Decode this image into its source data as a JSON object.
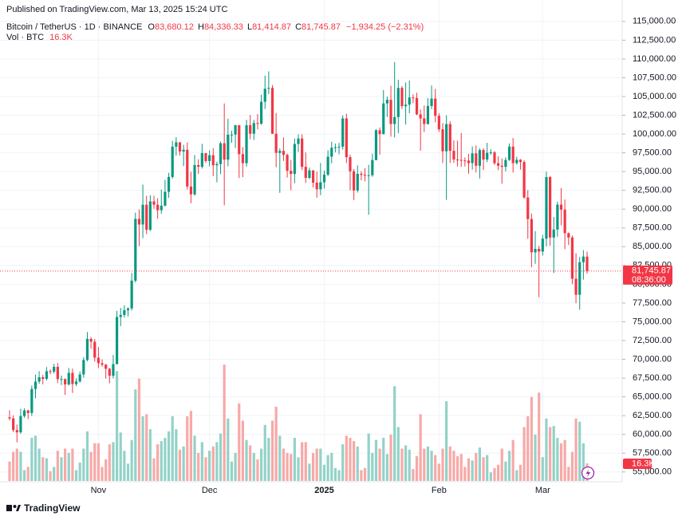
{
  "published": "Published on TradingView.com, Mar 13, 2025 15:24 UTC",
  "footer": {
    "brand": "TradingView"
  },
  "chart_data": {
    "type": "candlestick",
    "title": "Bitcoin / TetherUS · 1D · BINANCE",
    "ohlc_legend": [
      {
        "key": "O",
        "value": "83,680.12"
      },
      {
        "key": "H",
        "value": "84,336.33"
      },
      {
        "key": "L",
        "value": "81,414.87"
      },
      {
        "key": "C",
        "value": "81,745.87"
      }
    ],
    "change": "−1,934.25 (−2.31%)",
    "volume_legend": "Vol · BTC",
    "volume_last_label": "16.3K",
    "last_price_label": "81,745.87",
    "countdown": "08:36:00",
    "up_color": "#089981",
    "down_color": "#f23645",
    "volume_up_color": "#93d2c8",
    "volume_down_color": "#f7a9a7",
    "grid": true,
    "ylim": [
      53700,
      117000
    ],
    "yticks": [
      {
        "value": 55000,
        "label": "55,000.00"
      },
      {
        "value": 57500,
        "label": "57,500.00"
      },
      {
        "value": 60000,
        "label": "60,000.00"
      },
      {
        "value": 62500,
        "label": "62,500.00"
      },
      {
        "value": 65000,
        "label": "65,000.00"
      },
      {
        "value": 67500,
        "label": "67,500.00"
      },
      {
        "value": 70000,
        "label": "70,000.00"
      },
      {
        "value": 72500,
        "label": "72,500.00"
      },
      {
        "value": 75000,
        "label": "75,000.00"
      },
      {
        "value": 77500,
        "label": "77,500.00"
      },
      {
        "value": 80000,
        "label": "80,000.00"
      },
      {
        "value": 82500,
        "label": "82,500.00"
      },
      {
        "value": 85000,
        "label": "85,000.00"
      },
      {
        "value": 87500,
        "label": "87,500.00"
      },
      {
        "value": 90000,
        "label": "90,000.00"
      },
      {
        "value": 92500,
        "label": "92,500.00"
      },
      {
        "value": 95000,
        "label": "95,000.00"
      },
      {
        "value": 97500,
        "label": "97,500.00"
      },
      {
        "value": 100000,
        "label": "100,000.00"
      },
      {
        "value": 102500,
        "label": "102,500.00"
      },
      {
        "value": 105000,
        "label": "105,000.00"
      },
      {
        "value": 107500,
        "label": "107,500.00"
      },
      {
        "value": 110000,
        "label": "110,000.00"
      },
      {
        "value": 112500,
        "label": "112,500.00"
      },
      {
        "value": 115000,
        "label": "115,000.00"
      }
    ],
    "categories": [
      null,
      null,
      null,
      null,
      null,
      null,
      null,
      null,
      null,
      null,
      null,
      null,
      null,
      null,
      null,
      null,
      null,
      null,
      null,
      null,
      null,
      null,
      null,
      null,
      "Nov",
      null,
      null,
      null,
      null,
      null,
      null,
      null,
      null,
      null,
      null,
      null,
      null,
      null,
      null,
      null,
      null,
      null,
      null,
      null,
      null,
      null,
      null,
      null,
      null,
      null,
      null,
      null,
      null,
      null,
      "Dec",
      null,
      null,
      null,
      null,
      null,
      null,
      null,
      null,
      null,
      null,
      null,
      null,
      null,
      null,
      null,
      null,
      null,
      null,
      null,
      null,
      null,
      null,
      null,
      null,
      null,
      null,
      null,
      null,
      null,
      null,
      "2025",
      null,
      null,
      null,
      null,
      null,
      null,
      null,
      null,
      null,
      null,
      null,
      null,
      null,
      null,
      null,
      null,
      null,
      null,
      null,
      null,
      null,
      null,
      null,
      null,
      null,
      null,
      null,
      null,
      null,
      null,
      "Feb",
      null,
      null,
      null,
      null,
      null,
      null,
      null,
      null,
      null,
      null,
      null,
      null,
      null,
      null,
      null,
      null,
      null,
      null,
      null,
      null,
      null,
      null,
      null,
      null,
      null,
      null,
      null,
      "Mar",
      null,
      null,
      null,
      null,
      null,
      null,
      null,
      null,
      null,
      null,
      null,
      null
    ],
    "open": [
      62286,
      62131,
      60582,
      60274,
      62445,
      63193,
      62851,
      66046,
      67041,
      67612,
      67399,
      68418,
      68362,
      69001,
      67367,
      67368,
      66653,
      68198,
      66698,
      67047,
      67985,
      69910,
      72720,
      72339,
      70215,
      69482,
      69289,
      68741,
      67811,
      69359,
      75640,
      75904,
      76545,
      76778,
      80471,
      88705,
      87955,
      90585,
      87250,
      91032,
      90587,
      89855,
      90465,
      92310,
      94287,
      98317,
      98893,
      97672,
      97901,
      93010,
      91966,
      95864,
      95644,
      97461,
      96407,
      97185,
      95840,
      96002,
      98768,
      96593,
      99921,
      99924,
      101171,
      97323,
      96126,
      101171,
      100043,
      101459,
      101373,
      104298,
      106030,
      106140,
      100041,
      97490,
      97756,
      97225,
      95105,
      94687,
      98676,
      99400,
      95633,
      94164,
      95164,
      93530,
      92644,
      93576,
      94592,
      96984,
      98175,
      98237,
      98314,
      102078,
      96923,
      95043,
      92484,
      94702,
      94567,
      94488,
      94517,
      96535,
      100505,
      99987,
      104078,
      104556,
      101331,
      102261,
      106144,
      103706,
      103910,
      104871,
      104797,
      102620,
      102082,
      101336,
      103734,
      104722,
      102430,
      100635,
      97700,
      101328,
      97763,
      96613,
      96555,
      96482,
      96466,
      96126,
      97430,
      95778,
      97870,
      96608,
      97500,
      97569,
      96118,
      95780,
      95629,
      96550,
      98333,
      96125,
      96577,
      96273,
      91552,
      88680,
      84250,
      84708,
      84349,
      86064,
      94270,
      86221,
      87281,
      90606,
      89931,
      86801,
      86222,
      80734,
      78596,
      82933,
      83680.12
    ],
    "high": [
      63200,
      62543,
      61320,
      63417,
      63480,
      63285,
      66500,
      67950,
      68424,
      67940,
      68969,
      68668,
      69400,
      69500,
      67836,
      67440,
      68850,
      68771,
      67454,
      68380,
      70270,
      73620,
      72961,
      72700,
      71632,
      70000,
      69380,
      68870,
      70577,
      76460,
      76849,
      77199,
      76900,
      81500,
      89530,
      89956,
      93265,
      91765,
      91850,
      91779,
      91449,
      92594,
      93905,
      94831,
      99073,
      99588,
      98948,
      98564,
      98871,
      94973,
      97208,
      96650,
      98693,
      97463,
      97836,
      98130,
      96305,
      99000,
      104088,
      102039,
      100439,
      101234,
      101198,
      98270,
      101895,
      102540,
      101895,
      102650,
      105250,
      107780,
      108353,
      106524,
      102800,
      98100,
      99540,
      97400,
      96538,
      99404,
      99960,
      99963,
      97544,
      95525,
      95174,
      95000,
      96150,
      95150,
      97839,
      98976,
      98734,
      98813,
      102482,
      102712,
      97258,
      95350,
      95836,
      95054,
      95450,
      95900,
      97371,
      100681,
      100873,
      105865,
      104988,
      106422,
      109588,
      107240,
      106394,
      106850,
      107120,
      105286,
      105500,
      103260,
      103800,
      104782,
      106457,
      106012,
      102783,
      101456,
      102500,
      101700,
      99149,
      99120,
      100137,
      96880,
      97352,
      98345,
      98478,
      98119,
      98083,
      98826,
      97972,
      97732,
      97046,
      96753,
      96899,
      98756,
      99475,
      96964,
      96671,
      96503,
      92541,
      89414,
      87078,
      85120,
      86558,
      95000,
      94416,
      88967,
      91000,
      92810,
      91283,
      86897,
      86500,
      84123,
      83617,
      84539,
      84336.33
    ],
    "low": [
      61860,
      60300,
      58946,
      60088,
      62210,
      62050,
      62457,
      64800,
      66750,
      66666,
      67177,
      68024,
      68100,
      66835,
      66571,
      65260,
      66500,
      65520,
      66439,
      66889,
      67567,
      69730,
      71436,
      69685,
      68820,
      69020,
      67435,
      66803,
      67458,
      69322,
      74416,
      75555,
      75714,
      76493,
      80216,
      85072,
      86127,
      86668,
      87073,
      90056,
      88722,
      89376,
      90357,
      91500,
      94056,
      97122,
      97136,
      95734,
      92600,
      90791,
      91792,
      94677,
      95407,
      96150,
      95693,
      94395,
      93578,
      94665,
      90500,
      95705,
      98844,
      98150,
      94150,
      94256,
      95658,
      99311,
      99205,
      100626,
      101227,
      103322,
      105321,
      100000,
      95587,
      92175,
      96398,
      94202,
      92520,
      93448,
      97600,
      95200,
      93500,
      94014,
      92881,
      91530,
      91866,
      92743,
      94392,
      96100,
      97562,
      97291,
      97926,
      96132,
      92500,
      91203,
      92206,
      93831,
      93712,
      89256,
      94306,
      96500,
      97256,
      99950,
      102277,
      99651,
      99550,
      100119,
      103339,
      101262,
      102750,
      104106,
      102520,
      97777,
      100272,
      101256,
      103321,
      101560,
      100279,
      96150,
      91231,
      96150,
      96155,
      95676,
      95620,
      95688,
      94713,
      95256,
      94876,
      94088,
      95217,
      96252,
      97223,
      95900,
      95205,
      93388,
      95026,
      96416,
      94871,
      95945,
      95270,
      91371,
      86050,
      82256,
      82716,
      78258,
      83824,
      85050,
      85117,
      81500,
      86334,
      87836,
      84667,
      85218,
      80000,
      77459,
      76606,
      80614,
      81414.87
    ],
    "close": [
      62131,
      60582,
      60274,
      62445,
      63193,
      62851,
      66046,
      67041,
      67612,
      67399,
      68418,
      68362,
      69001,
      67367,
      67368,
      66653,
      68198,
      66698,
      67047,
      67985,
      69910,
      72720,
      72339,
      70215,
      69482,
      69289,
      68741,
      67811,
      69359,
      75639,
      75904,
      76545,
      76778,
      80474,
      88701,
      87955,
      90584,
      87250,
      91032,
      90586,
      89855,
      90464,
      92310,
      94286,
      98317,
      98892,
      97672,
      97900,
      93010,
      91965,
      95863,
      95643,
      97460,
      96407,
      97185,
      95840,
      96002,
      98768,
      96593,
      99920,
      99923,
      101170,
      97323,
      96126,
      101171,
      100043,
      101459,
      101372,
      104298,
      106029,
      106140,
      100041,
      97490,
      97756,
      97225,
      95104,
      94686,
      98676,
      99400,
      95633,
      94164,
      95164,
      93530,
      92643,
      93576,
      94591,
      96984,
      98174,
      98236,
      98314,
      102078,
      96922,
      95043,
      92484,
      94701,
      94566,
      94488,
      94516,
      96534,
      100505,
      99987,
      104077,
      104557,
      101331,
      102260,
      106143,
      103706,
      103910,
      104871,
      104797,
      102620,
      102082,
      101335,
      103734,
      104722,
      102429,
      100635,
      97700,
      101328,
      97763,
      96612,
      96555,
      96482,
      96466,
      96126,
      97430,
      95778,
      97869,
      96608,
      97500,
      97569,
      96118,
      95780,
      95629,
      96550,
      98333,
      96125,
      96577,
      96273,
      91552,
      88680,
      84250,
      84708,
      84349,
      86064,
      94270,
      86220,
      87281,
      90606,
      89931,
      86801,
      86222,
      80734,
      78595,
      82932,
      83680,
      81745.87
    ],
    "volume": [
      18,
      27,
      30,
      27,
      10,
      13,
      40,
      42,
      30,
      22,
      21,
      9,
      13,
      28,
      22,
      30,
      26,
      30,
      10,
      17,
      30,
      46,
      27,
      35,
      35,
      13,
      20,
      34,
      36,
      102,
      45,
      28,
      16,
      38,
      85,
      95,
      60,
      62,
      48,
      21,
      34,
      37,
      40,
      46,
      60,
      48,
      29,
      32,
      60,
      65,
      42,
      26,
      36,
      22,
      28,
      32,
      36,
      44,
      108,
      58,
      18,
      26,
      72,
      56,
      38,
      33,
      26,
      20,
      30,
      52,
      40,
      56,
      69,
      42,
      30,
      26,
      25,
      40,
      22,
      36,
      36,
      16,
      26,
      30,
      30,
      15,
      24,
      26,
      12,
      10,
      34,
      42,
      40,
      37,
      32,
      10,
      12,
      44,
      26,
      38,
      30,
      40,
      25,
      43,
      88,
      50,
      30,
      33,
      29,
      11,
      23,
      62,
      30,
      32,
      28,
      24,
      16,
      30,
      74,
      32,
      28,
      23,
      25,
      13,
      21,
      19,
      26,
      31,
      22,
      24,
      8,
      12,
      15,
      30,
      18,
      28,
      38,
      10,
      15,
      50,
      60,
      78,
      43,
      82,
      22,
      58,
      50,
      51,
      40,
      35,
      38,
      13,
      27,
      58,
      55,
      35,
      16.3
    ]
  }
}
